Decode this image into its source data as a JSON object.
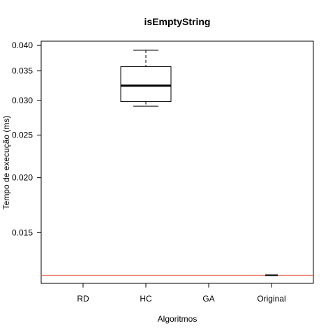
{
  "chart_data": {
    "type": "box",
    "title": "isEmptyString",
    "xlabel": "Algoritmos",
    "ylabel": "Tempo de execução (ms)",
    "y_scale": "log",
    "ylim": [
      0.0115,
      0.0409
    ],
    "yticks": [
      {
        "value": 0.015,
        "label": "0.015"
      },
      {
        "value": 0.02,
        "label": "0.020"
      },
      {
        "value": 0.025,
        "label": "0.025"
      },
      {
        "value": 0.03,
        "label": "0.030"
      },
      {
        "value": 0.035,
        "label": "0.035"
      },
      {
        "value": 0.04,
        "label": "0.040"
      }
    ],
    "categories": [
      "RD",
      "HC",
      "GA",
      "Original"
    ],
    "boxes": [
      {
        "category": "HC",
        "whisker_low": 0.0291,
        "q1": 0.0298,
        "median": 0.0324,
        "q3": 0.0358,
        "whisker_high": 0.039
      }
    ],
    "original_value": 0.012,
    "reference_line": {
      "value": 0.012,
      "color": "#e8553a"
    },
    "grid": false
  }
}
